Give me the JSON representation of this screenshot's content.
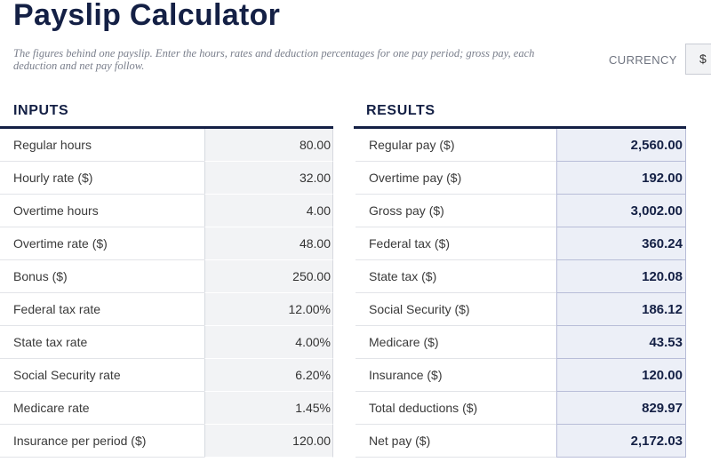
{
  "header": {
    "title": "Payslip Calculator",
    "description": "The figures behind one payslip. Enter the hours, rates and deduction percentages for one pay period; gross pay, each deduction and net pay follow.",
    "currency_label": "CURRENCY",
    "currency_value": "$"
  },
  "inputs": {
    "title": "INPUTS",
    "rows": [
      {
        "label": "Regular hours",
        "value": "80.00"
      },
      {
        "label": "Hourly rate ($)",
        "value": "32.00"
      },
      {
        "label": "Overtime hours",
        "value": "4.00"
      },
      {
        "label": "Overtime rate ($)",
        "value": "48.00"
      },
      {
        "label": "Bonus ($)",
        "value": "250.00"
      },
      {
        "label": "Federal tax rate",
        "value": "12.00%"
      },
      {
        "label": "State tax rate",
        "value": "4.00%"
      },
      {
        "label": "Social Security rate",
        "value": "6.20%"
      },
      {
        "label": "Medicare rate",
        "value": "1.45%"
      },
      {
        "label": "Insurance per period ($)",
        "value": "120.00"
      }
    ]
  },
  "results": {
    "title": "RESULTS",
    "rows": [
      {
        "label": "Regular pay ($)",
        "value": "2,560.00"
      },
      {
        "label": "Overtime pay ($)",
        "value": "192.00"
      },
      {
        "label": "Gross pay ($)",
        "value": "3,002.00"
      },
      {
        "label": "Federal tax ($)",
        "value": "360.24"
      },
      {
        "label": "State tax ($)",
        "value": "120.08"
      },
      {
        "label": "Social Security ($)",
        "value": "186.12"
      },
      {
        "label": "Medicare ($)",
        "value": "43.53"
      },
      {
        "label": "Insurance ($)",
        "value": "120.00"
      },
      {
        "label": "Total deductions ($)",
        "value": "829.97"
      },
      {
        "label": "Net pay ($)",
        "value": "2,172.03"
      }
    ]
  }
}
